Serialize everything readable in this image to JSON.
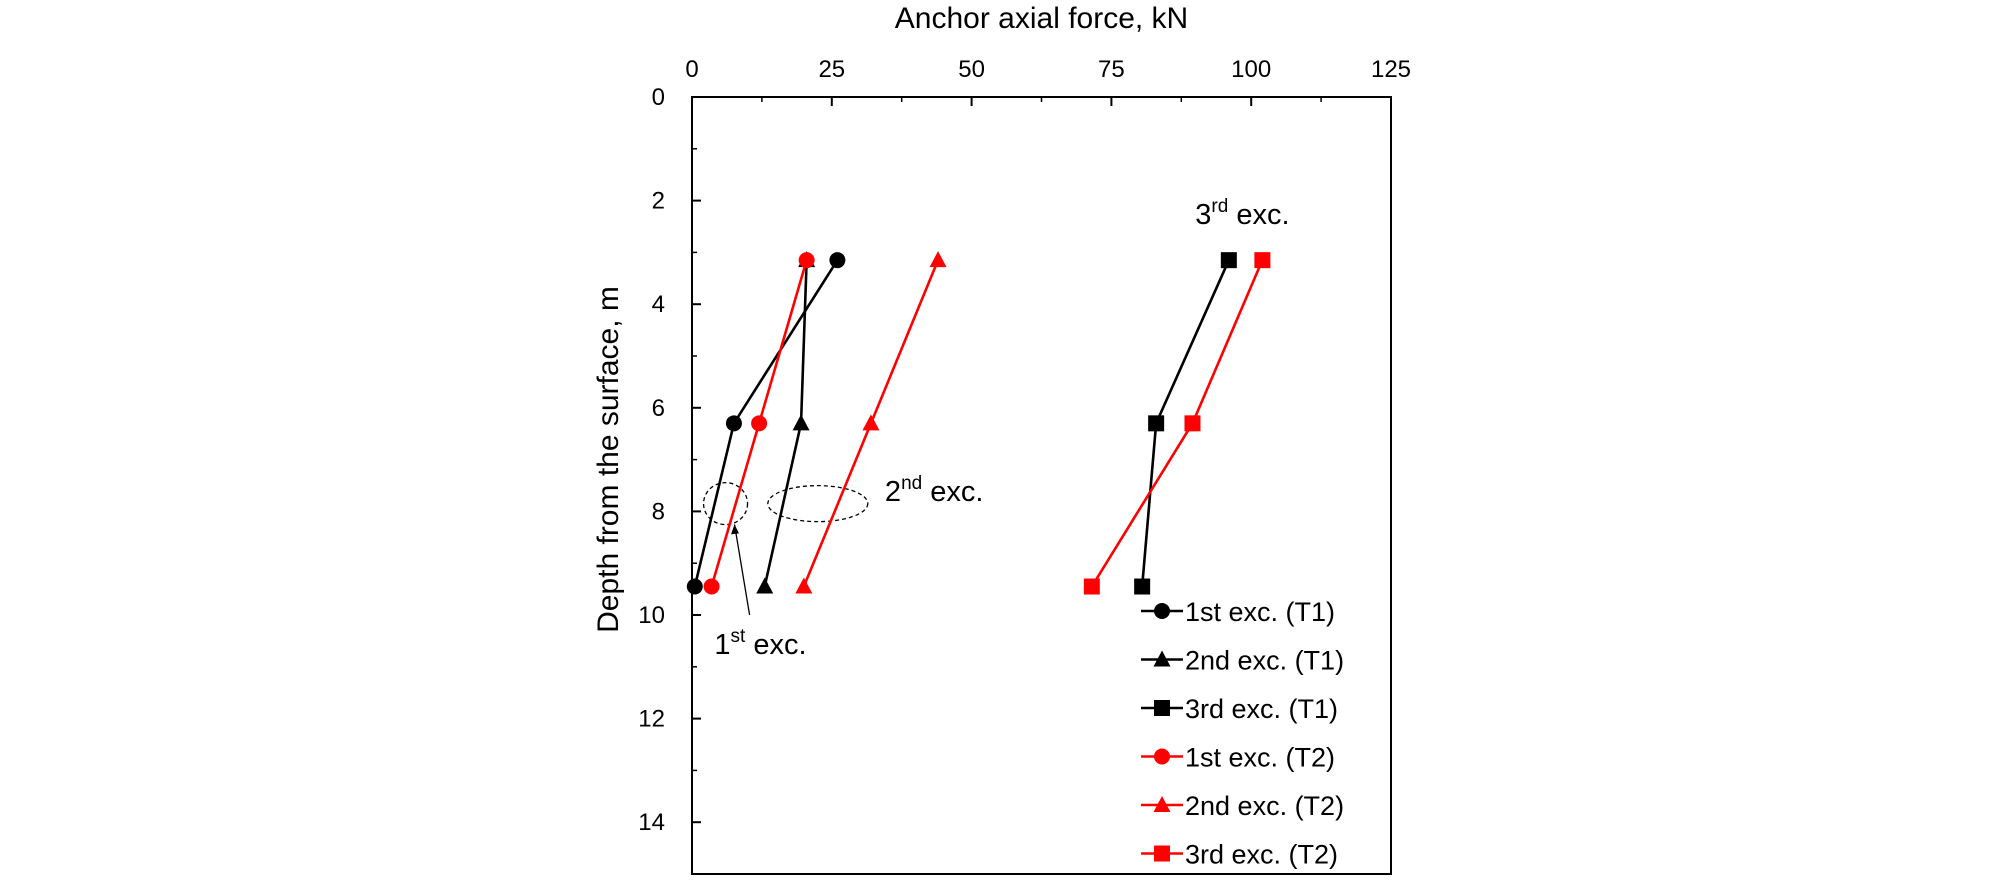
{
  "chart_data": {
    "type": "line",
    "xlabel": "Anchor axial force, kN",
    "ylabel": "Depth from the surface, m",
    "xlim": [
      0,
      125
    ],
    "ylim": [
      0,
      15
    ],
    "y_inverted": true,
    "x_axis_position": "top",
    "x_ticks": [
      0,
      25,
      50,
      75,
      100,
      125
    ],
    "y_ticks": [
      0,
      2,
      4,
      6,
      8,
      10,
      12,
      14
    ],
    "grid": false,
    "legend_placement": "bottom-right",
    "colors": {
      "T1": "#000000",
      "T2": "#ff0000"
    },
    "series": [
      {
        "name": "1st exc. (T1)",
        "color": "#000000",
        "marker": "circle",
        "points": [
          {
            "x": 26,
            "y": 3.15
          },
          {
            "x": 7.5,
            "y": 6.3
          },
          {
            "x": 0.5,
            "y": 9.45
          }
        ]
      },
      {
        "name": "2nd exc. (T1)",
        "color": "#000000",
        "marker": "triangle",
        "points": [
          {
            "x": 20.5,
            "y": 3.15
          },
          {
            "x": 19.5,
            "y": 6.3
          },
          {
            "x": 13,
            "y": 9.45
          }
        ]
      },
      {
        "name": "3rd exc. (T1)",
        "color": "#000000",
        "marker": "square",
        "points": [
          {
            "x": 96,
            "y": 3.15
          },
          {
            "x": 83,
            "y": 6.3
          },
          {
            "x": 80.5,
            "y": 9.45
          }
        ]
      },
      {
        "name": "1st exc. (T2)",
        "color": "#ff0000",
        "marker": "circle",
        "points": [
          {
            "x": 20.5,
            "y": 3.15
          },
          {
            "x": 12,
            "y": 6.3
          },
          {
            "x": 3.5,
            "y": 9.45
          }
        ]
      },
      {
        "name": "2nd exc. (T2)",
        "color": "#ff0000",
        "marker": "triangle",
        "points": [
          {
            "x": 44,
            "y": 3.15
          },
          {
            "x": 32,
            "y": 6.3
          },
          {
            "x": 20,
            "y": 9.45
          }
        ]
      },
      {
        "name": "3rd exc. (T2)",
        "color": "#ff0000",
        "marker": "square",
        "points": [
          {
            "x": 102,
            "y": 3.15
          },
          {
            "x": 89.5,
            "y": 6.3
          },
          {
            "x": 71.5,
            "y": 9.45
          }
        ]
      }
    ],
    "annotations": [
      {
        "base": "1",
        "sup": "st",
        "rest": " exc.",
        "x": 4,
        "y": 10.75
      },
      {
        "base": "2",
        "sup": "nd",
        "rest": " exc.",
        "x": 34.5,
        "y": 7.8
      },
      {
        "base": "3",
        "sup": "rd",
        "rest": " exc.",
        "x": 90,
        "y": 2.45
      }
    ]
  }
}
